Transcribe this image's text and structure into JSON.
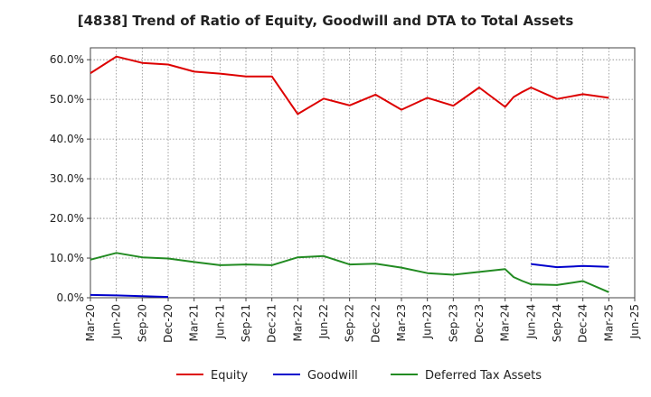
{
  "chart_data": {
    "type": "line",
    "title": "[4838]  Trend of Ratio of Equity, Goodwill and DTA to Total Assets",
    "xlabel": "",
    "ylabel": "",
    "ylim": [
      0,
      63
    ],
    "y_ticks": [
      0,
      10,
      20,
      30,
      40,
      50,
      60
    ],
    "y_tick_labels": [
      "0.0%",
      "10.0%",
      "20.0%",
      "30.0%",
      "40.0%",
      "50.0%",
      "60.0%"
    ],
    "x_tick_labels": [
      "Mar-20",
      "Jun-20",
      "Sep-20",
      "Dec-20",
      "Mar-21",
      "Jun-21",
      "Sep-21",
      "Dec-21",
      "Mar-22",
      "Jun-22",
      "Sep-22",
      "Dec-22",
      "Mar-23",
      "Jun-23",
      "Sep-23",
      "Dec-23",
      "Mar-24",
      "Jun-24",
      "Sep-24",
      "Dec-24",
      "Mar-25",
      "Jun-25"
    ],
    "grid": true,
    "legend_position": "bottom",
    "series": [
      {
        "name": "Equity",
        "color": "#dd0000",
        "points": [
          [
            0,
            56.6
          ],
          [
            1,
            60.8
          ],
          [
            2,
            59.2
          ],
          [
            3,
            58.8
          ],
          [
            4,
            57.0
          ],
          [
            5,
            56.5
          ],
          [
            6,
            55.8
          ],
          [
            7,
            55.8
          ],
          [
            8,
            46.3
          ],
          [
            9,
            50.2
          ],
          [
            10,
            48.5
          ],
          [
            11,
            51.2
          ],
          [
            12,
            47.4
          ],
          [
            13,
            50.4
          ],
          [
            14,
            48.4
          ],
          [
            15,
            53.0
          ],
          [
            16,
            48.1
          ],
          [
            16.33,
            50.6
          ],
          [
            16.67,
            51.9
          ],
          [
            17,
            53.0
          ],
          [
            18,
            50.1
          ],
          [
            19,
            51.3
          ],
          [
            20,
            50.4
          ]
        ]
      },
      {
        "name": "Goodwill",
        "color": "#0000cc",
        "points": [
          [
            0,
            0.7
          ],
          [
            1,
            0.6
          ],
          [
            2,
            0.4
          ],
          [
            3,
            0.2
          ],
          [
            17,
            8.5
          ],
          [
            18,
            7.7
          ],
          [
            19,
            8.0
          ],
          [
            20,
            7.8
          ]
        ],
        "segments": [
          [
            0,
            4
          ],
          [
            4,
            8
          ]
        ]
      },
      {
        "name": "Deferred Tax Assets",
        "color": "#228B22",
        "points": [
          [
            0,
            9.6
          ],
          [
            1,
            11.3
          ],
          [
            2,
            10.2
          ],
          [
            3,
            9.9
          ],
          [
            4,
            9.0
          ],
          [
            5,
            8.2
          ],
          [
            6,
            8.4
          ],
          [
            7,
            8.2
          ],
          [
            8,
            10.2
          ],
          [
            9,
            10.5
          ],
          [
            10,
            8.4
          ],
          [
            11,
            8.6
          ],
          [
            12,
            7.6
          ],
          [
            13,
            6.2
          ],
          [
            14,
            5.8
          ],
          [
            15,
            6.5
          ],
          [
            16,
            7.2
          ],
          [
            16.33,
            5.2
          ],
          [
            16.67,
            4.2
          ],
          [
            17,
            3.4
          ],
          [
            18,
            3.2
          ],
          [
            19,
            4.2
          ],
          [
            20,
            1.4
          ]
        ]
      }
    ]
  }
}
